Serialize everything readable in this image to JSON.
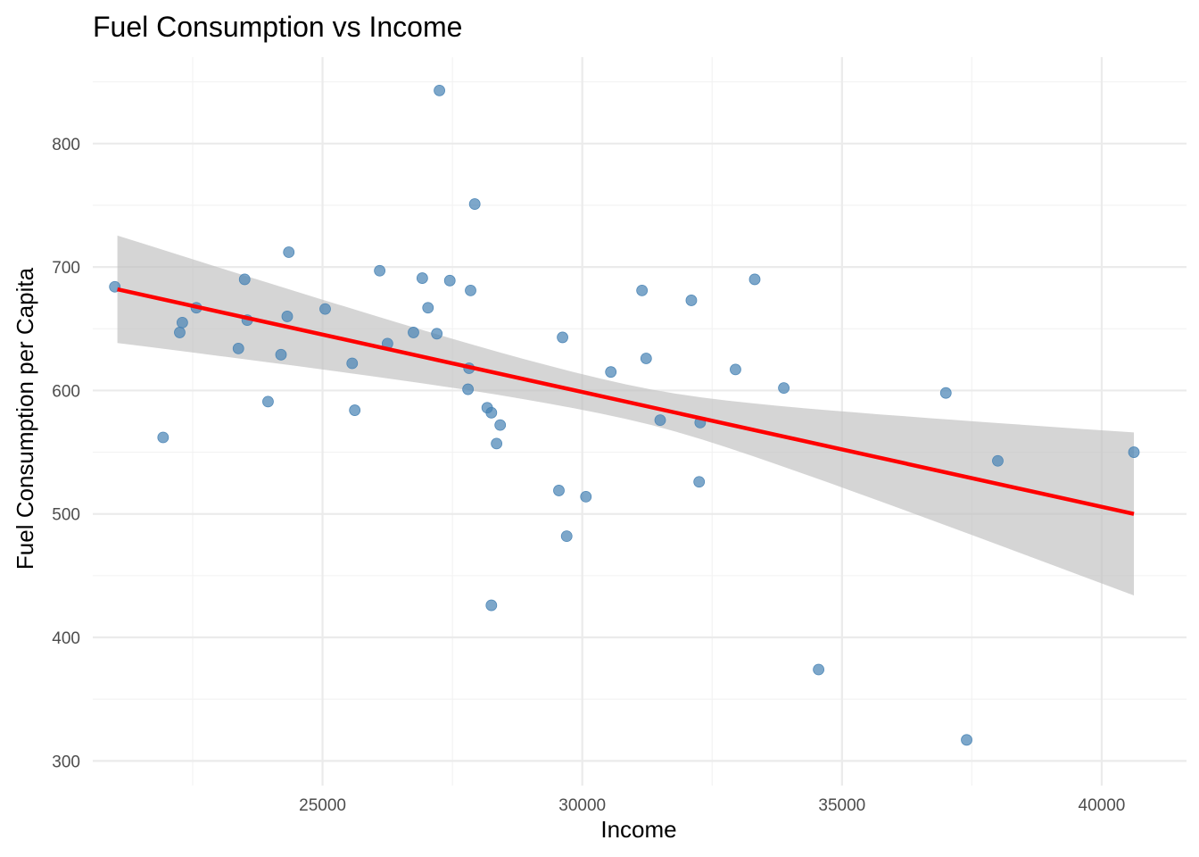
{
  "chart_data": {
    "type": "scatter",
    "title": "Fuel Consumption vs Income",
    "xlabel": "Income",
    "ylabel": "Fuel Consumption per Capita",
    "xlim": [
      20576,
      41633
    ],
    "ylim": [
      280,
      870
    ],
    "x_ticks": [
      25000,
      30000,
      35000,
      40000
    ],
    "x_tick_labels": [
      "25000",
      "30000",
      "35000",
      "40000"
    ],
    "y_ticks": [
      300,
      400,
      500,
      600,
      700,
      800
    ],
    "y_tick_labels": [
      "300",
      "400",
      "500",
      "600",
      "700",
      "800"
    ],
    "grid": true,
    "colors": {
      "points": "#4682b4",
      "fit_line": "#ff0000",
      "band": "#bebebe"
    },
    "points": [
      {
        "x": 21000,
        "y": 684
      },
      {
        "x": 21930,
        "y": 562
      },
      {
        "x": 22250,
        "y": 647
      },
      {
        "x": 22300,
        "y": 655
      },
      {
        "x": 22570,
        "y": 667
      },
      {
        "x": 23380,
        "y": 634
      },
      {
        "x": 23500,
        "y": 690
      },
      {
        "x": 23550,
        "y": 657
      },
      {
        "x": 23950,
        "y": 591
      },
      {
        "x": 24200,
        "y": 629
      },
      {
        "x": 24320,
        "y": 660
      },
      {
        "x": 24350,
        "y": 712
      },
      {
        "x": 25050,
        "y": 666
      },
      {
        "x": 25570,
        "y": 622
      },
      {
        "x": 25620,
        "y": 584
      },
      {
        "x": 26100,
        "y": 697
      },
      {
        "x": 26250,
        "y": 638
      },
      {
        "x": 26750,
        "y": 647
      },
      {
        "x": 26920,
        "y": 691
      },
      {
        "x": 27030,
        "y": 667
      },
      {
        "x": 27200,
        "y": 646
      },
      {
        "x": 27250,
        "y": 843
      },
      {
        "x": 27450,
        "y": 689
      },
      {
        "x": 27800,
        "y": 601
      },
      {
        "x": 27820,
        "y": 618
      },
      {
        "x": 27850,
        "y": 681
      },
      {
        "x": 27930,
        "y": 751
      },
      {
        "x": 28170,
        "y": 586
      },
      {
        "x": 28250,
        "y": 582
      },
      {
        "x": 28250,
        "y": 426
      },
      {
        "x": 28350,
        "y": 557
      },
      {
        "x": 28420,
        "y": 572
      },
      {
        "x": 29550,
        "y": 519
      },
      {
        "x": 29620,
        "y": 643
      },
      {
        "x": 29700,
        "y": 482
      },
      {
        "x": 30070,
        "y": 514
      },
      {
        "x": 30550,
        "y": 615
      },
      {
        "x": 31150,
        "y": 681
      },
      {
        "x": 31230,
        "y": 626
      },
      {
        "x": 31500,
        "y": 576
      },
      {
        "x": 32100,
        "y": 673
      },
      {
        "x": 32250,
        "y": 526
      },
      {
        "x": 32270,
        "y": 574
      },
      {
        "x": 32950,
        "y": 617
      },
      {
        "x": 33320,
        "y": 690
      },
      {
        "x": 33880,
        "y": 602
      },
      {
        "x": 34550,
        "y": 374
      },
      {
        "x": 37000,
        "y": 598
      },
      {
        "x": 37400,
        "y": 317
      },
      {
        "x": 38000,
        "y": 543
      },
      {
        "x": 40620,
        "y": 550
      }
    ],
    "fit": {
      "type": "linear",
      "x": [
        21050,
        40620
      ],
      "y": [
        682,
        500
      ],
      "band_upper": [
        725,
        566
      ],
      "band_lower": [
        638,
        434
      ]
    }
  }
}
